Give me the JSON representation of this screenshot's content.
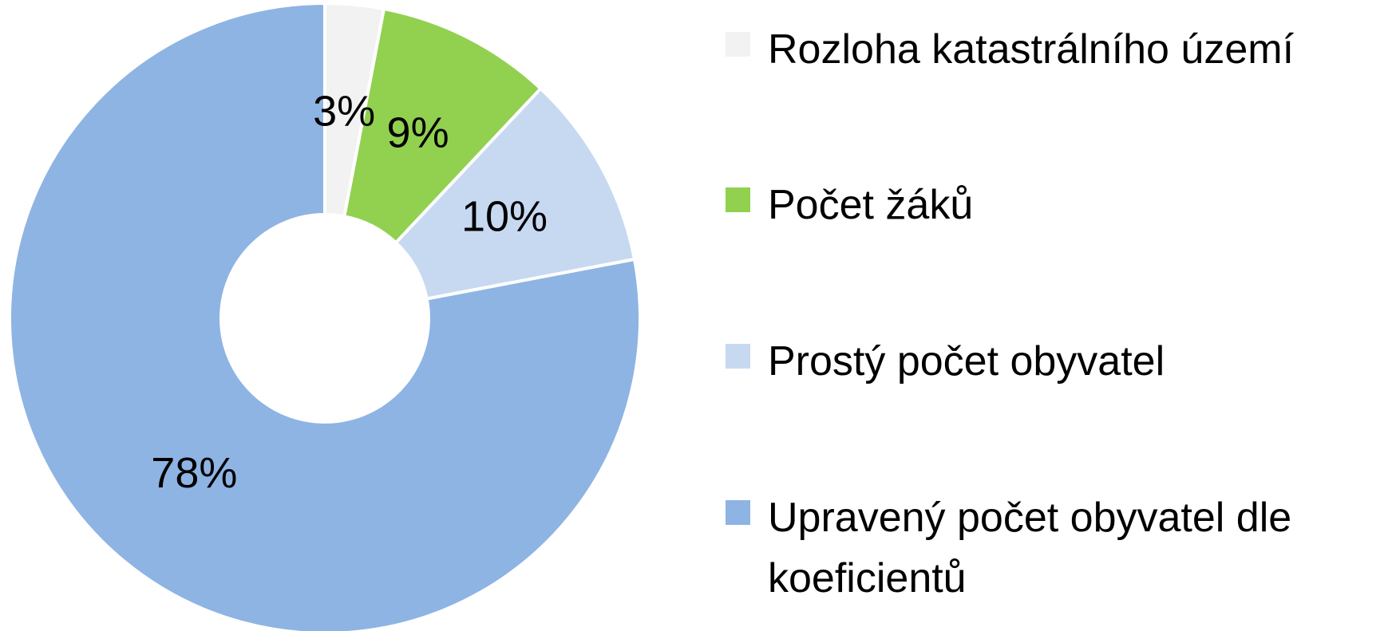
{
  "chart_data": {
    "type": "donut",
    "categories": [
      "Rozloha katastrálního území",
      "Počet žáků",
      "Prostý počet obyvatel",
      "Upravený počet obyvatel dle koeficientů"
    ],
    "values": [
      3,
      9,
      10,
      78
    ],
    "value_labels": [
      "3%",
      "9%",
      "10%",
      "78%"
    ],
    "colors": [
      "#f2f2f2",
      "#92d050",
      "#c6d9f1",
      "#8eb4e3"
    ],
    "legend": "right"
  }
}
